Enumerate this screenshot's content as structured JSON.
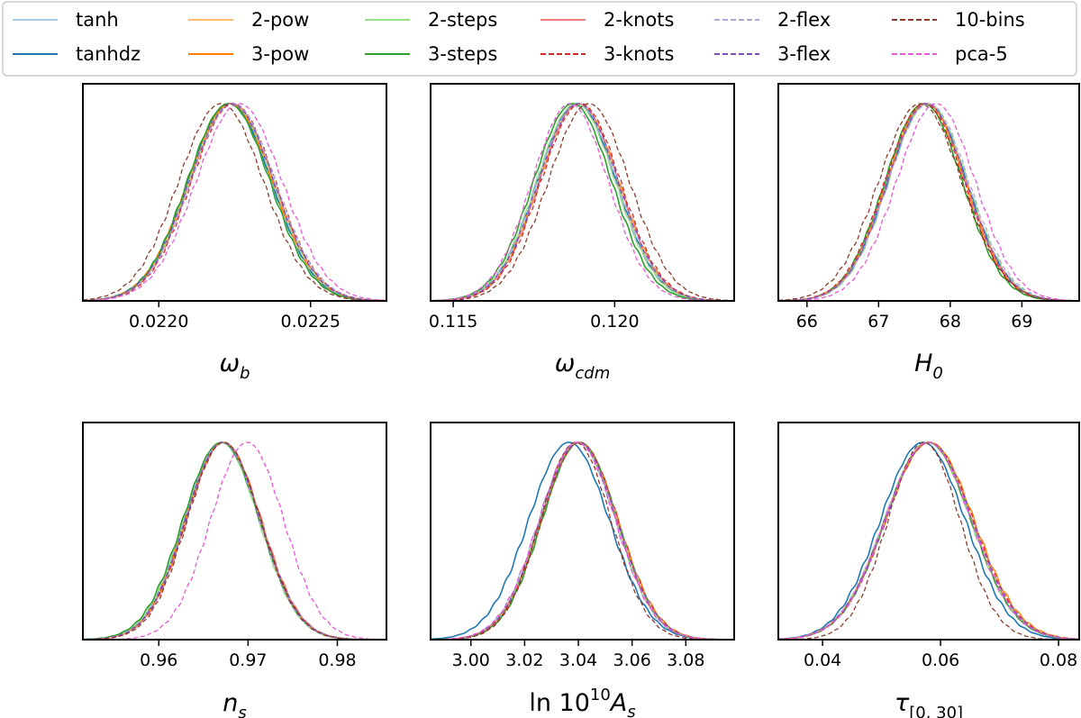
{
  "legend": {
    "entries": [
      {
        "name": "tanh",
        "color": "#a6cee3",
        "dash": "solid"
      },
      {
        "name": "tanhdz",
        "color": "#1f78b4",
        "dash": "solid"
      },
      {
        "name": "2-pow",
        "color": "#fdbf6f",
        "dash": "solid"
      },
      {
        "name": "3-pow",
        "color": "#ff7f00",
        "dash": "solid"
      },
      {
        "name": "2-steps",
        "color": "#98df8a",
        "dash": "solid"
      },
      {
        "name": "3-steps",
        "color": "#2ca02c",
        "dash": "solid"
      },
      {
        "name": "2-knots",
        "color": "#f08080",
        "dash": "solid"
      },
      {
        "name": "3-knots",
        "color": "#d62728",
        "dash": "dashed"
      },
      {
        "name": "2-flex",
        "color": "#b0a8d8",
        "dash": "dashed"
      },
      {
        "name": "3-flex",
        "color": "#7b4fbf",
        "dash": "dashed"
      },
      {
        "name": "10-bins",
        "color": "#8c3b2a",
        "dash": "dashed"
      },
      {
        "name": "pca-5",
        "color": "#e857d4",
        "dash": "dashed"
      }
    ]
  },
  "chart_data": [
    {
      "type": "line",
      "id": "omega_b",
      "xlabel": {
        "sym": "ω",
        "sub": "b"
      },
      "xlim": [
        0.02175,
        0.02275
      ],
      "xticks": [
        0.022,
        0.0225
      ],
      "xtick_labels": [
        "0.0220",
        "0.0225"
      ],
      "yrange": [
        0,
        1
      ],
      "series": [
        {
          "name": "tanh",
          "mean": 0.022236,
          "sigma": 0.000138
        },
        {
          "name": "tanhdz",
          "mean": 0.022234,
          "sigma": 0.000138
        },
        {
          "name": "2-pow",
          "mean": 0.022238,
          "sigma": 0.000138
        },
        {
          "name": "3-pow",
          "mean": 0.022236,
          "sigma": 0.000139
        },
        {
          "name": "2-steps",
          "mean": 0.02224,
          "sigma": 0.000138
        },
        {
          "name": "3-steps",
          "mean": 0.02223,
          "sigma": 0.000136
        },
        {
          "name": "2-knots",
          "mean": 0.022242,
          "sigma": 0.000138
        },
        {
          "name": "3-knots",
          "mean": 0.022246,
          "sigma": 0.000138
        },
        {
          "name": "2-flex",
          "mean": 0.022244,
          "sigma": 0.00014
        },
        {
          "name": "3-flex",
          "mean": 0.02224,
          "sigma": 0.000139
        },
        {
          "name": "10-bins",
          "mean": 0.022205,
          "sigma": 0.00014
        },
        {
          "name": "pca-5",
          "mean": 0.022265,
          "sigma": 0.000142
        }
      ]
    },
    {
      "type": "line",
      "id": "omega_cdm",
      "xlabel": {
        "sym": "ω",
        "sub": "cdm"
      },
      "xlim": [
        0.1143,
        0.1237
      ],
      "xticks": [
        0.115,
        0.12
      ],
      "xtick_labels": [
        "0.115",
        "0.120"
      ],
      "yrange": [
        0,
        1
      ],
      "series": [
        {
          "name": "tanh",
          "mean": 0.11885,
          "sigma": 0.00122
        },
        {
          "name": "tanhdz",
          "mean": 0.11882,
          "sigma": 0.00122
        },
        {
          "name": "2-pow",
          "mean": 0.11888,
          "sigma": 0.00122
        },
        {
          "name": "3-pow",
          "mean": 0.1189,
          "sigma": 0.00123
        },
        {
          "name": "2-steps",
          "mean": 0.1188,
          "sigma": 0.00122
        },
        {
          "name": "3-steps",
          "mean": 0.1187,
          "sigma": 0.00121
        },
        {
          "name": "2-knots",
          "mean": 0.1189,
          "sigma": 0.00122
        },
        {
          "name": "3-knots",
          "mean": 0.11895,
          "sigma": 0.00123
        },
        {
          "name": "2-flex",
          "mean": 0.11885,
          "sigma": 0.00124
        },
        {
          "name": "3-flex",
          "mean": 0.11888,
          "sigma": 0.00123
        },
        {
          "name": "10-bins",
          "mean": 0.1192,
          "sigma": 0.00126
        },
        {
          "name": "pca-5",
          "mean": 0.11862,
          "sigma": 0.00118
        }
      ]
    },
    {
      "type": "line",
      "id": "H0",
      "xlabel": {
        "sym": "H",
        "sub": "0"
      },
      "xlim": [
        65.6,
        69.8
      ],
      "xticks": [
        66,
        67,
        68,
        69
      ],
      "xtick_labels": [
        "66",
        "67",
        "68",
        "69"
      ],
      "yrange": [
        0,
        1
      ],
      "series": [
        {
          "name": "tanh",
          "mean": 67.67,
          "sigma": 0.55
        },
        {
          "name": "tanhdz",
          "mean": 67.68,
          "sigma": 0.55
        },
        {
          "name": "2-pow",
          "mean": 67.66,
          "sigma": 0.55
        },
        {
          "name": "3-pow",
          "mean": 67.66,
          "sigma": 0.55
        },
        {
          "name": "2-steps",
          "mean": 67.69,
          "sigma": 0.55
        },
        {
          "name": "3-steps",
          "mean": 67.63,
          "sigma": 0.54
        },
        {
          "name": "2-knots",
          "mean": 67.67,
          "sigma": 0.55
        },
        {
          "name": "3-knots",
          "mean": 67.64,
          "sigma": 0.55
        },
        {
          "name": "2-flex",
          "mean": 67.7,
          "sigma": 0.56
        },
        {
          "name": "3-flex",
          "mean": 67.67,
          "sigma": 0.55
        },
        {
          "name": "10-bins",
          "mean": 67.58,
          "sigma": 0.58
        },
        {
          "name": "pca-5",
          "mean": 67.8,
          "sigma": 0.55
        }
      ]
    },
    {
      "type": "line",
      "id": "n_s",
      "xlabel": {
        "sym": "n",
        "sub": "s"
      },
      "xlim": [
        0.9515,
        0.9855
      ],
      "xticks": [
        0.96,
        0.97,
        0.98
      ],
      "xtick_labels": [
        "0.96",
        "0.97",
        "0.98"
      ],
      "yrange": [
        0,
        1
      ],
      "series": [
        {
          "name": "tanh",
          "mean": 0.9672,
          "sigma": 0.0042
        },
        {
          "name": "tanhdz",
          "mean": 0.9671,
          "sigma": 0.0042
        },
        {
          "name": "2-pow",
          "mean": 0.9673,
          "sigma": 0.0042
        },
        {
          "name": "3-pow",
          "mean": 0.9672,
          "sigma": 0.0042
        },
        {
          "name": "2-steps",
          "mean": 0.967,
          "sigma": 0.0042
        },
        {
          "name": "3-steps",
          "mean": 0.967,
          "sigma": 0.0043
        },
        {
          "name": "2-knots",
          "mean": 0.9673,
          "sigma": 0.0042
        },
        {
          "name": "3-knots",
          "mean": 0.9672,
          "sigma": 0.0042
        },
        {
          "name": "2-flex",
          "mean": 0.9671,
          "sigma": 0.0042
        },
        {
          "name": "3-flex",
          "mean": 0.9672,
          "sigma": 0.0042
        },
        {
          "name": "10-bins",
          "mean": 0.9673,
          "sigma": 0.0041
        },
        {
          "name": "pca-5",
          "mean": 0.9699,
          "sigma": 0.0041
        }
      ]
    },
    {
      "type": "line",
      "id": "ln10As",
      "xlabel": {
        "sym": "ln 10",
        "sup": "10",
        "tail": "A",
        "sub": "s"
      },
      "xlim": [
        2.985,
        3.098
      ],
      "xticks": [
        3.0,
        3.02,
        3.04,
        3.06,
        3.08
      ],
      "xtick_labels": [
        "3.00",
        "3.02",
        "3.04",
        "3.06",
        "3.08"
      ],
      "yrange": [
        0,
        1
      ],
      "series": [
        {
          "name": "tanh",
          "mean": 3.0395,
          "sigma": 0.0142
        },
        {
          "name": "tanhdz",
          "mean": 3.0365,
          "sigma": 0.015
        },
        {
          "name": "2-pow",
          "mean": 3.0405,
          "sigma": 0.0142
        },
        {
          "name": "3-pow",
          "mean": 3.0405,
          "sigma": 0.0143
        },
        {
          "name": "2-steps",
          "mean": 3.04,
          "sigma": 0.0141
        },
        {
          "name": "3-steps",
          "mean": 3.0405,
          "sigma": 0.014
        },
        {
          "name": "2-knots",
          "mean": 3.04,
          "sigma": 0.0142
        },
        {
          "name": "3-knots",
          "mean": 3.0405,
          "sigma": 0.0142
        },
        {
          "name": "2-flex",
          "mean": 3.04,
          "sigma": 0.0143
        },
        {
          "name": "3-flex",
          "mean": 3.04,
          "sigma": 0.0142
        },
        {
          "name": "10-bins",
          "mean": 3.039,
          "sigma": 0.0132
        },
        {
          "name": "pca-5",
          "mean": 3.0395,
          "sigma": 0.0142
        }
      ]
    },
    {
      "type": "line",
      "id": "tau",
      "xlabel": {
        "sym": "τ",
        "sub": "[0, 30]"
      },
      "xlim": [
        0.0325,
        0.0835
      ],
      "xticks": [
        0.04,
        0.06,
        0.08
      ],
      "xtick_labels": [
        "0.04",
        "0.06",
        "0.08"
      ],
      "yrange": [
        0,
        1
      ],
      "series": [
        {
          "name": "tanh",
          "mean": 0.0578,
          "sigma": 0.0073
        },
        {
          "name": "tanhdz",
          "mean": 0.057,
          "sigma": 0.0072
        },
        {
          "name": "2-pow",
          "mean": 0.058,
          "sigma": 0.0074
        },
        {
          "name": "3-pow",
          "mean": 0.0582,
          "sigma": 0.0075
        },
        {
          "name": "2-steps",
          "mean": 0.0578,
          "sigma": 0.0073
        },
        {
          "name": "3-steps",
          "mean": 0.0579,
          "sigma": 0.0073
        },
        {
          "name": "2-knots",
          "mean": 0.058,
          "sigma": 0.0074
        },
        {
          "name": "3-knots",
          "mean": 0.0581,
          "sigma": 0.0074
        },
        {
          "name": "2-flex",
          "mean": 0.0579,
          "sigma": 0.0074
        },
        {
          "name": "3-flex",
          "mean": 0.058,
          "sigma": 0.0074
        },
        {
          "name": "10-bins",
          "mean": 0.0572,
          "sigma": 0.0061
        },
        {
          "name": "pca-5",
          "mean": 0.0579,
          "sigma": 0.0073
        }
      ]
    }
  ]
}
